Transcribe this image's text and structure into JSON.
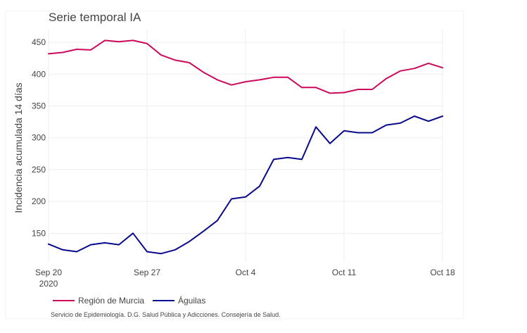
{
  "chart_data": {
    "type": "line",
    "title": "Serie temporal IA",
    "xlabel": "",
    "ylabel": "Incidencia acumulada 14 días",
    "ylim": [
      105,
      470
    ],
    "y_ticks": [
      150,
      200,
      250,
      300,
      350,
      400,
      450
    ],
    "x": [
      0,
      1,
      2,
      3,
      4,
      5,
      6,
      7,
      8,
      9,
      10,
      11,
      12,
      13,
      14,
      15,
      16,
      17,
      18,
      19,
      20,
      21,
      22,
      23,
      24,
      25,
      26,
      27,
      28
    ],
    "x_ticks": [
      {
        "x": 0,
        "label": "Sep 20",
        "sublabel": "2020"
      },
      {
        "x": 7,
        "label": "Sep 27",
        "sublabel": ""
      },
      {
        "x": 14,
        "label": "Oct 4",
        "sublabel": ""
      },
      {
        "x": 21,
        "label": "Oct 11",
        "sublabel": ""
      },
      {
        "x": 28,
        "label": "Oct 18",
        "sublabel": ""
      }
    ],
    "series": [
      {
        "name": "Región de Murcia",
        "color": "#cc0a5b",
        "values": [
          432,
          434,
          439,
          438,
          453,
          451,
          453,
          448,
          430,
          422,
          418,
          403,
          391,
          383,
          388,
          391,
          395,
          395,
          379,
          379,
          370,
          371,
          376,
          376,
          393,
          405,
          409,
          417,
          410
        ]
      },
      {
        "name": "Águilas",
        "color": "#0a0a8c",
        "values": [
          133,
          124,
          121,
          132,
          135,
          132,
          150,
          121,
          118,
          124,
          137,
          153,
          170,
          204,
          207,
          224,
          266,
          269,
          266,
          317,
          291,
          311,
          308,
          308,
          320,
          323,
          334,
          326,
          334
        ]
      }
    ],
    "legend": "bottom-left",
    "grid": true
  },
  "footer": {
    "source": "Servicio de Epidemiología. D.G. Salud Pública y Adicciones. Consejería de Salud."
  }
}
